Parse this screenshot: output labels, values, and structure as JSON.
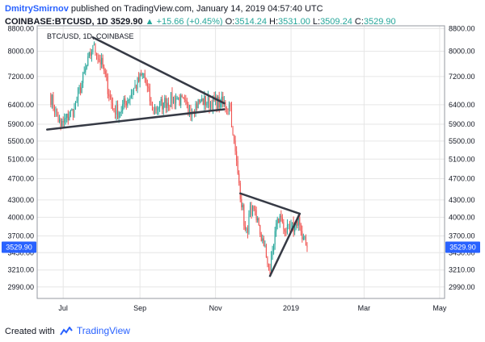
{
  "header": {
    "author": "DmitrySmirnov",
    "published_text": "published on TradingView.com, January 14, 2019 04:57:40 UTC",
    "symbol": "COINBASE:BTCUSD, 1D",
    "last_price": "3529.90",
    "change": "+15.66 (+0.45%)",
    "open_label": "O:",
    "open_value": "3514.24",
    "high_label": "H:",
    "high_value": "3531.00",
    "low_label": "L:",
    "low_value": "3509.24",
    "close_label": "C:",
    "close_value": "3529.90"
  },
  "legend": {
    "text": "BTC/USD, 1D, COINBASE"
  },
  "footer": {
    "prefix": "Created with",
    "brand": "TradingView"
  },
  "colors": {
    "up": "#26a69a",
    "down": "#ef5350",
    "line": "#363a45",
    "grid": "#e6e6e6",
    "badge": "#2962ff"
  },
  "chart_data": {
    "type": "candlestick",
    "title": "BTC/USD, 1D, COINBASE",
    "y_ticks": [
      2990,
      3210,
      3450,
      3700,
      4000,
      4300,
      4700,
      5100,
      5500,
      5900,
      6400,
      7200,
      8000,
      8800
    ],
    "ylim": [
      2850,
      8900
    ],
    "x_tick_labels": [
      {
        "date": "2018-07-01",
        "label": "Jul"
      },
      {
        "date": "2018-09-01",
        "label": "Sep"
      },
      {
        "date": "2018-11-01",
        "label": "Nov"
      },
      {
        "date": "2019-01-01",
        "label": "2019"
      },
      {
        "date": "2019-03-01",
        "label": "Mar"
      },
      {
        "date": "2019-05-01",
        "label": "May"
      }
    ],
    "xlim": [
      "2018-06-10",
      "2019-05-05"
    ],
    "last_price_label": "3529.90",
    "trendlines": [
      {
        "from": {
          "date": "2018-06-18",
          "price": 5770
        },
        "to": {
          "date": "2018-11-08",
          "price": 6280
        }
      },
      {
        "from": {
          "date": "2018-07-25",
          "price": 8480
        },
        "to": {
          "date": "2018-11-08",
          "price": 6440
        }
      },
      {
        "from": {
          "date": "2018-11-21",
          "price": 4420
        },
        "to": {
          "date": "2019-01-08",
          "price": 4060
        }
      },
      {
        "from": {
          "date": "2018-12-15",
          "price": 3130
        },
        "to": {
          "date": "2019-01-08",
          "price": 4060
        }
      }
    ],
    "key_points": [
      {
        "date": "2018-06-20",
        "price": 6700
      },
      {
        "date": "2018-06-29",
        "price": 5850
      },
      {
        "date": "2018-07-10",
        "price": 6300
      },
      {
        "date": "2018-07-25",
        "price": 8200
      },
      {
        "date": "2018-08-02",
        "price": 7500
      },
      {
        "date": "2018-08-10",
        "price": 6300
      },
      {
        "date": "2018-08-15",
        "price": 6200
      },
      {
        "date": "2018-09-04",
        "price": 7300
      },
      {
        "date": "2018-09-11",
        "price": 6250
      },
      {
        "date": "2018-09-20",
        "price": 6450
      },
      {
        "date": "2018-10-01",
        "price": 6600
      },
      {
        "date": "2018-10-11",
        "price": 6250
      },
      {
        "date": "2018-10-20",
        "price": 6500
      },
      {
        "date": "2018-11-05",
        "price": 6450
      },
      {
        "date": "2018-11-13",
        "price": 6350
      },
      {
        "date": "2018-11-15",
        "price": 5650
      },
      {
        "date": "2018-11-19",
        "price": 4800
      },
      {
        "date": "2018-11-25",
        "price": 3800
      },
      {
        "date": "2018-11-27",
        "price": 3750
      },
      {
        "date": "2018-11-29",
        "price": 4200
      },
      {
        "date": "2018-12-04",
        "price": 3950
      },
      {
        "date": "2018-12-10",
        "price": 3550
      },
      {
        "date": "2018-12-15",
        "price": 3200
      },
      {
        "date": "2018-12-20",
        "price": 3900
      },
      {
        "date": "2018-12-24",
        "price": 4000
      },
      {
        "date": "2018-12-28",
        "price": 3750
      },
      {
        "date": "2019-01-04",
        "price": 3850
      },
      {
        "date": "2019-01-07",
        "price": 4000
      },
      {
        "date": "2019-01-10",
        "price": 3650
      },
      {
        "date": "2019-01-14",
        "price": 3529.9
      }
    ]
  }
}
